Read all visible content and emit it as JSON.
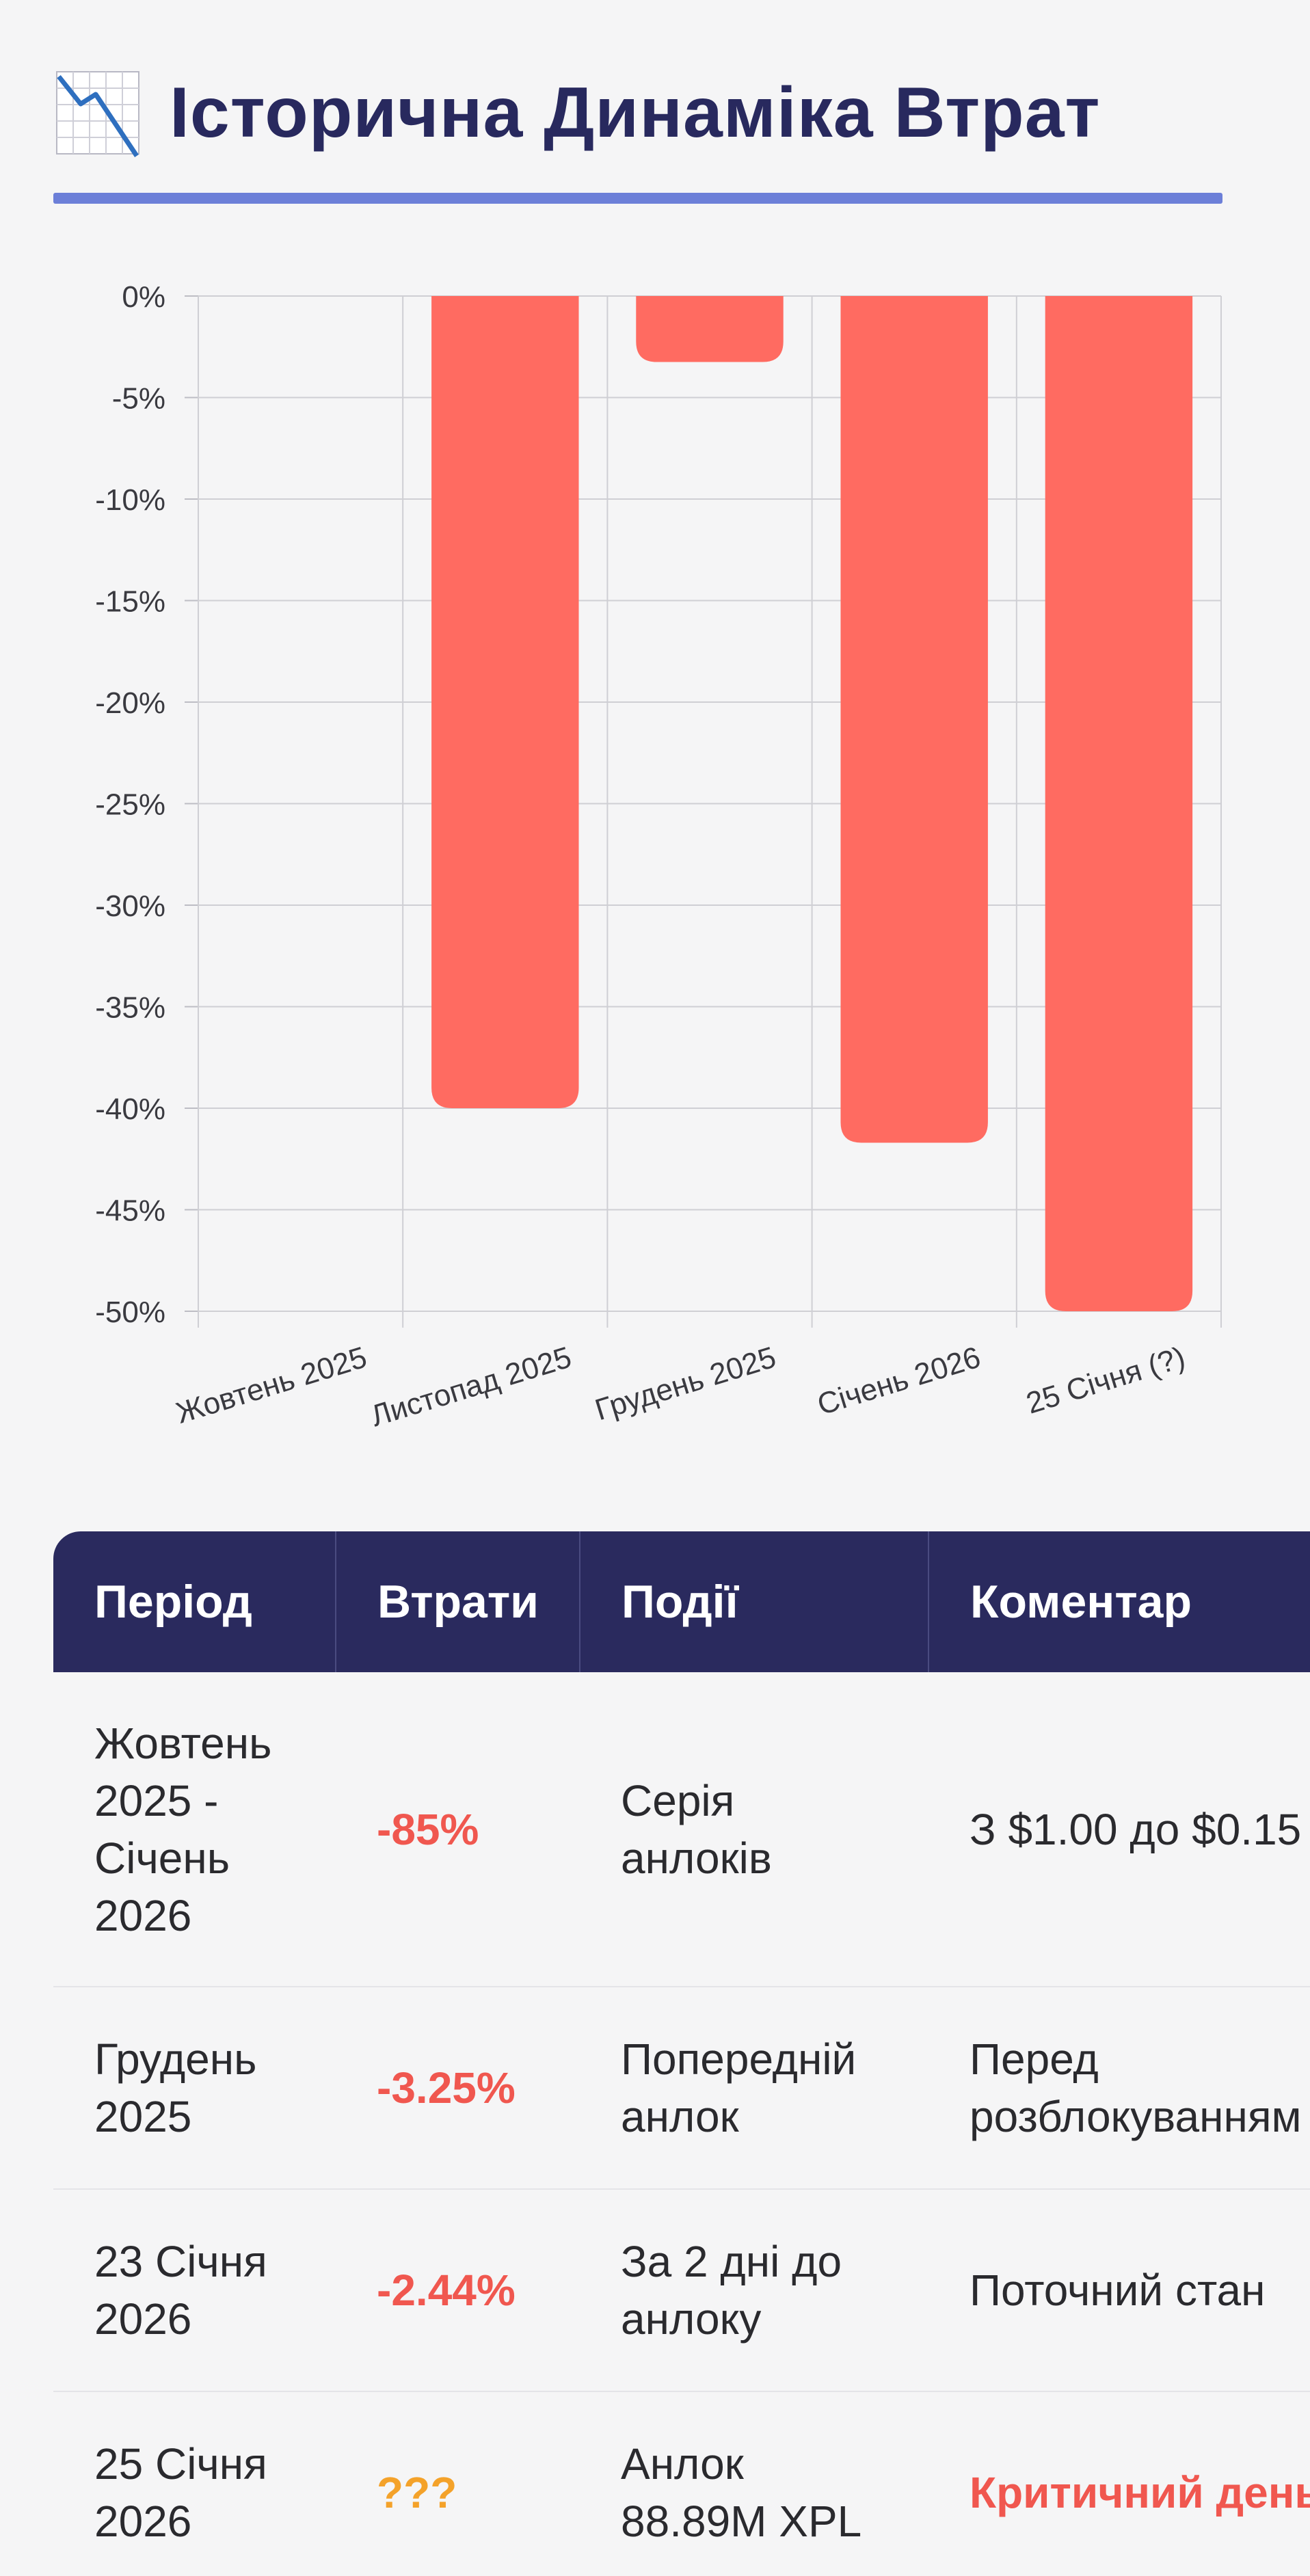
{
  "header": {
    "title": "Історична Динаміка Втрат",
    "icon": "chart-decreasing-icon"
  },
  "colors": {
    "accent": "#6c7fd8",
    "bar": "#ff6b61",
    "header_bg": "#2a2a5e",
    "loss_text": "#f0574f",
    "unknown_text": "#f4a22a"
  },
  "chart_data": {
    "type": "bar",
    "title": "",
    "xlabel": "",
    "ylabel": "",
    "categories": [
      "Жовтень 2025",
      "Листопад 2025",
      "Грудень 2025",
      "Січень 2026",
      "25 Січня (?)"
    ],
    "values": [
      0,
      -40,
      -3.25,
      -41.7,
      -50
    ],
    "ylim": [
      -50,
      0
    ],
    "yticks": [
      "0%",
      "-5%",
      "-10%",
      "-15%",
      "-20%",
      "-25%",
      "-30%",
      "-35%",
      "-40%",
      "-45%",
      "-50%"
    ],
    "grid": true
  },
  "table": {
    "headers": [
      "Період",
      "Втрати",
      "Події",
      "Коментар"
    ],
    "rows": [
      {
        "period": [
          "Жовтень",
          "2025 -",
          "Січень",
          "2026"
        ],
        "loss": "-85%",
        "event": [
          "Серія",
          "анлоків"
        ],
        "comment": "З $1.00 до $0.15"
      },
      {
        "period": [
          "Грудень",
          "2025"
        ],
        "loss": "-3.25%",
        "event": [
          "Попередній",
          "анлок"
        ],
        "comment": [
          "Перед",
          "розблокуванням"
        ]
      },
      {
        "period": [
          "23 Січня",
          "2026"
        ],
        "loss": "-2.44%",
        "event": [
          "За 2 дні до",
          "анлоку"
        ],
        "comment": "Поточний стан"
      },
      {
        "period": [
          "25 Січня",
          "2026"
        ],
        "loss": "???",
        "event": [
          "Анлок",
          "88.89M XPL"
        ],
        "comment": "Критичний день"
      }
    ]
  }
}
